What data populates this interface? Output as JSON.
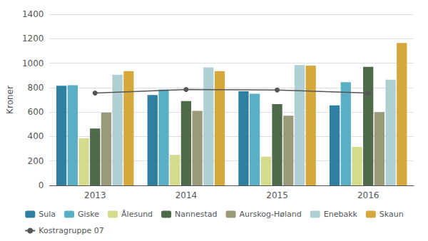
{
  "chart_data": {
    "type": "bar",
    "categories": [
      "2013",
      "2014",
      "2015",
      "2016"
    ],
    "ylabel": "Kroner",
    "ylim": [
      0,
      1400
    ],
    "yticks": [
      0,
      200,
      400,
      600,
      800,
      1000,
      1200,
      1400
    ],
    "grid": true,
    "legend": "bottom",
    "series": [
      {
        "name": "Sula",
        "color": "#2e7fa0",
        "values": [
          815,
          740,
          770,
          655
        ]
      },
      {
        "name": "Giske",
        "color": "#5aafc4",
        "values": [
          820,
          785,
          750,
          845
        ]
      },
      {
        "name": "Ålesund",
        "color": "#d4db8e",
        "values": [
          385,
          250,
          235,
          315
        ]
      },
      {
        "name": "Nannestad",
        "color": "#4e6a4a",
        "values": [
          465,
          690,
          665,
          970
        ]
      },
      {
        "name": "Aurskog-Høland",
        "color": "#9a9a7a",
        "values": [
          595,
          610,
          570,
          600
        ]
      },
      {
        "name": "Enebakk",
        "color": "#b0cfd4",
        "values": [
          905,
          965,
          985,
          865
        ]
      },
      {
        "name": "Skaun",
        "color": "#d4a83c",
        "values": [
          935,
          935,
          980,
          1165
        ]
      },
      {
        "name": "Kostragruppe 07",
        "type": "line",
        "color": "#555555",
        "marker": "circle",
        "values": [
          755,
          785,
          780,
          755
        ]
      }
    ]
  }
}
